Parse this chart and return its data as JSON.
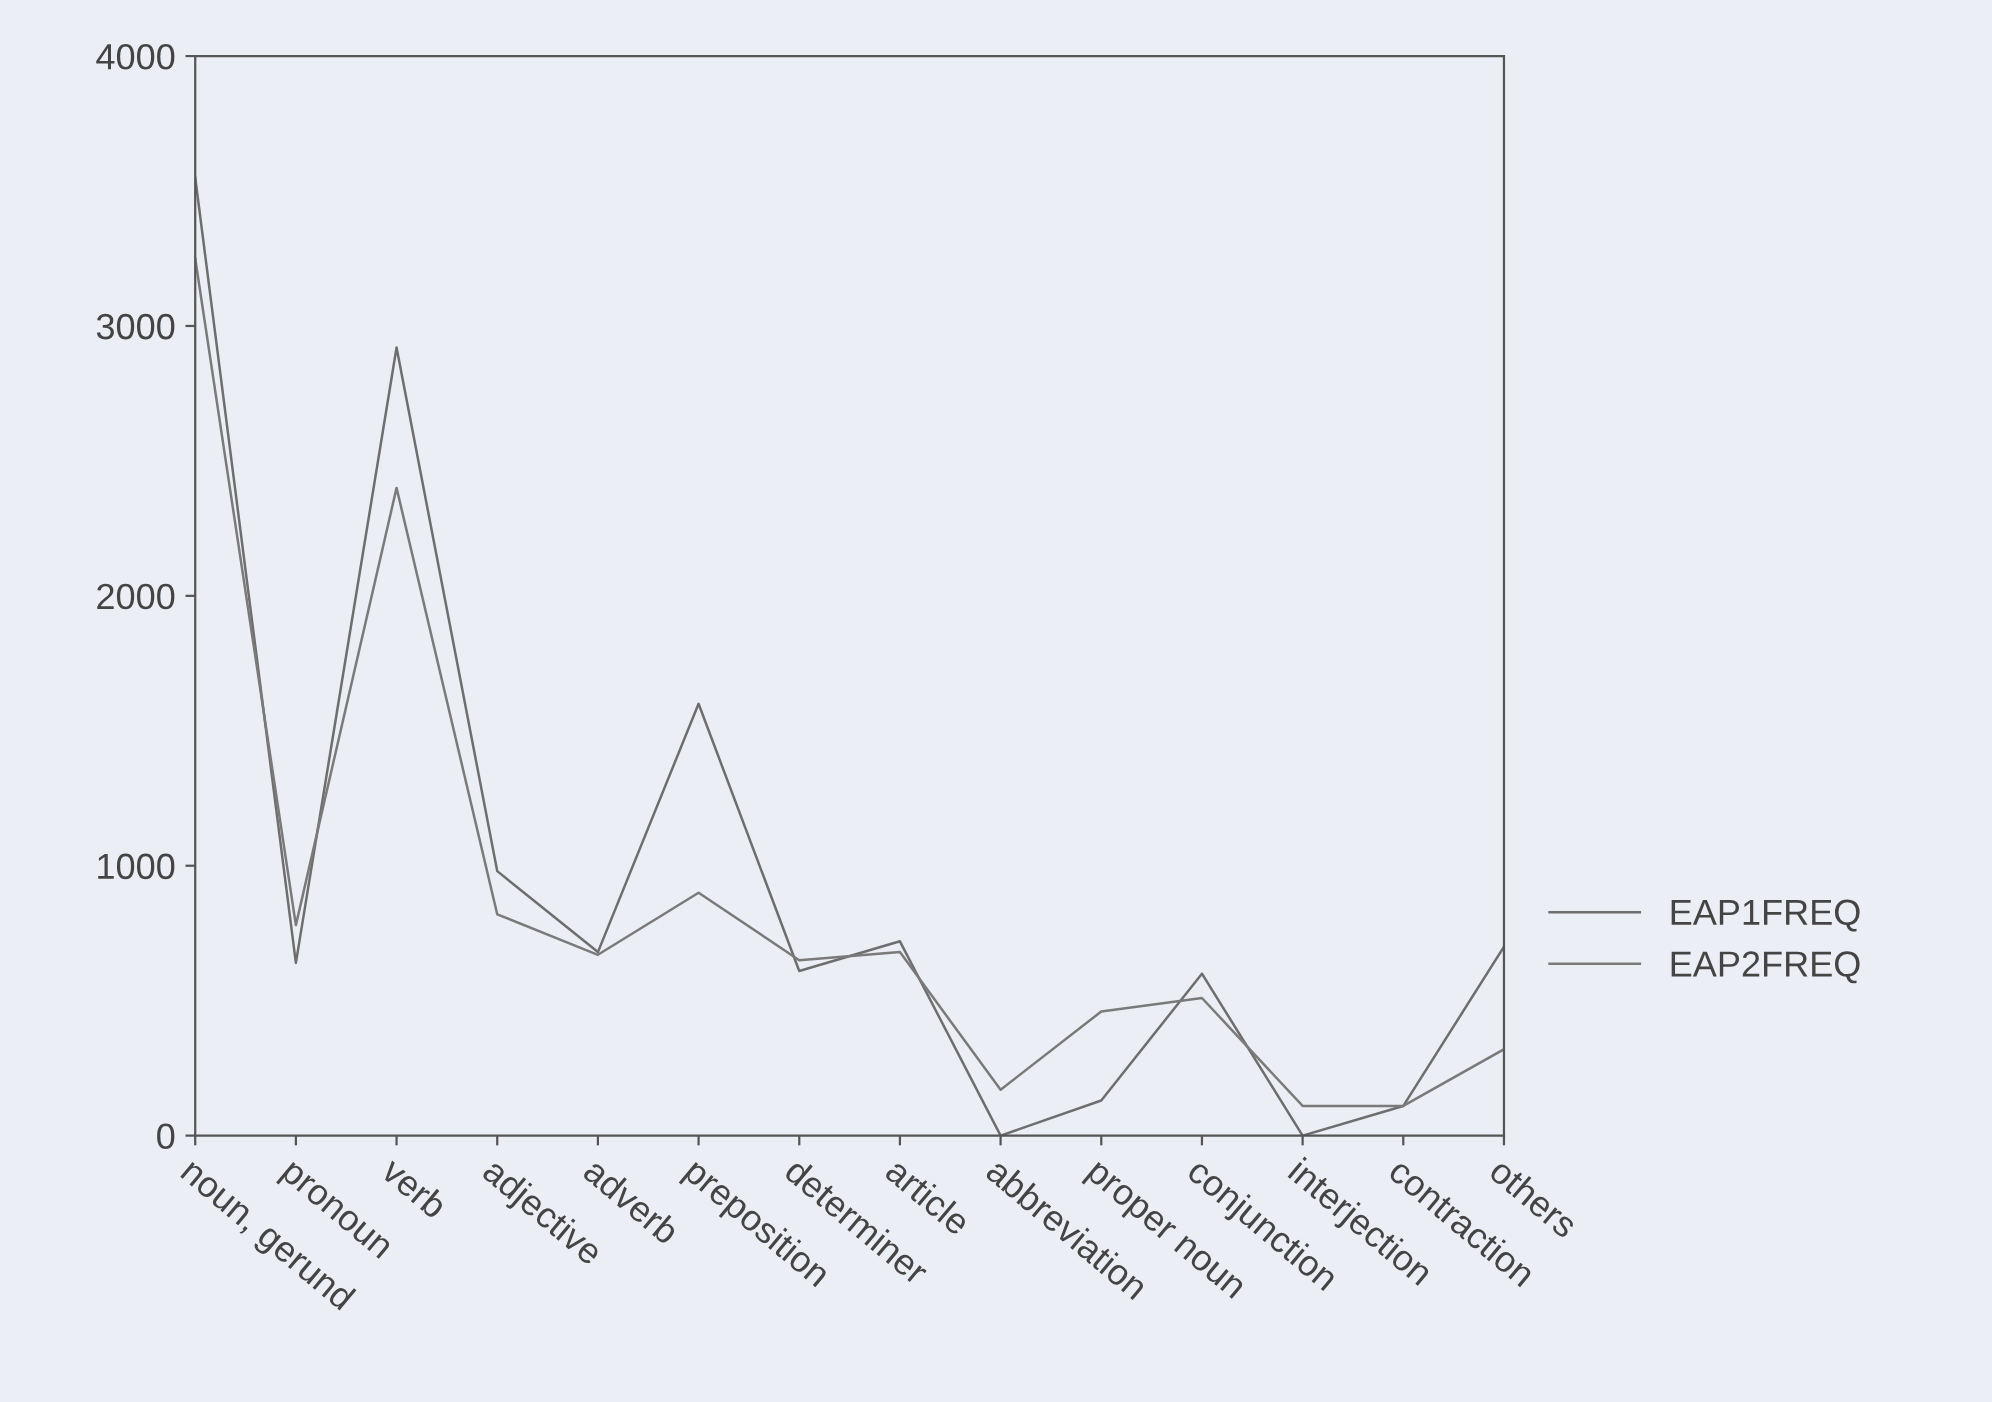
{
  "chart_data": {
    "type": "line",
    "categories": [
      "noun, gerund",
      "pronoun",
      "verb",
      "adjective",
      "adverb",
      "preposition",
      "determiner",
      "article",
      "abbreviation",
      "proper noun",
      "conjunction",
      "interjection",
      "contraction",
      "others"
    ],
    "series": [
      {
        "name": "EAP1FREQ",
        "color": "#6e6e6e",
        "values": [
          3550,
          640,
          2920,
          980,
          680,
          1600,
          610,
          720,
          0,
          130,
          600,
          0,
          110,
          700
        ]
      },
      {
        "name": "EAP2FREQ",
        "color": "#7a7a7a",
        "values": [
          3250,
          780,
          2400,
          820,
          670,
          900,
          650,
          680,
          170,
          460,
          510,
          110,
          110,
          320
        ]
      }
    ],
    "ylim": [
      0,
      4000
    ],
    "yticks": [
      0,
      1000,
      2000,
      3000,
      4000
    ],
    "grid": false,
    "legend": "right",
    "marker": "none",
    "line_style": "solid"
  }
}
